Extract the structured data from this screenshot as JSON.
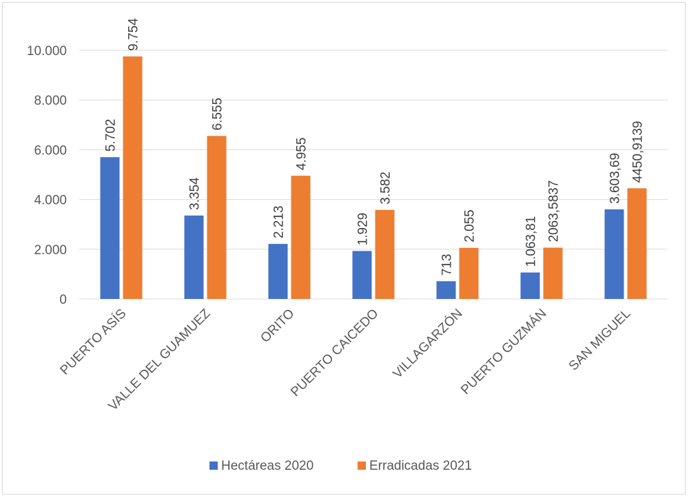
{
  "chart_data": {
    "type": "bar",
    "categories": [
      "PUERTO ASÍS",
      "VALLE DEL GUAMUEZ",
      "ORITO",
      "PUERTO CAICEDO",
      "VILLAGARZÓN",
      "PUERTO GUZMÁN",
      "SAN MIGUEL"
    ],
    "series": [
      {
        "name": "Hectáreas 2020",
        "color": "#4472c4",
        "values": [
          5702,
          3354,
          2213,
          1929,
          713,
          1063.81,
          3603.69
        ],
        "labels": [
          "5.702",
          "3.354",
          "2.213",
          "1.929",
          "713",
          "1.063,81",
          "3.603,69"
        ]
      },
      {
        "name": "Erradicadas 2021",
        "color": "#ed7d31",
        "values": [
          9754,
          6555,
          4955,
          3582,
          2055,
          2063.5837,
          4450.9139
        ],
        "labels": [
          "9.754",
          "6.555",
          "4.955",
          "3.582",
          "2.055",
          "2063,5837",
          "4450,9139"
        ]
      }
    ],
    "y_ticks": [
      "0",
      "2.000",
      "4.000",
      "6.000",
      "8.000",
      "10.000"
    ],
    "ylim": [
      0,
      10000
    ],
    "grid": true,
    "legend": "bottom",
    "title": "",
    "xlabel": "",
    "ylabel": ""
  }
}
